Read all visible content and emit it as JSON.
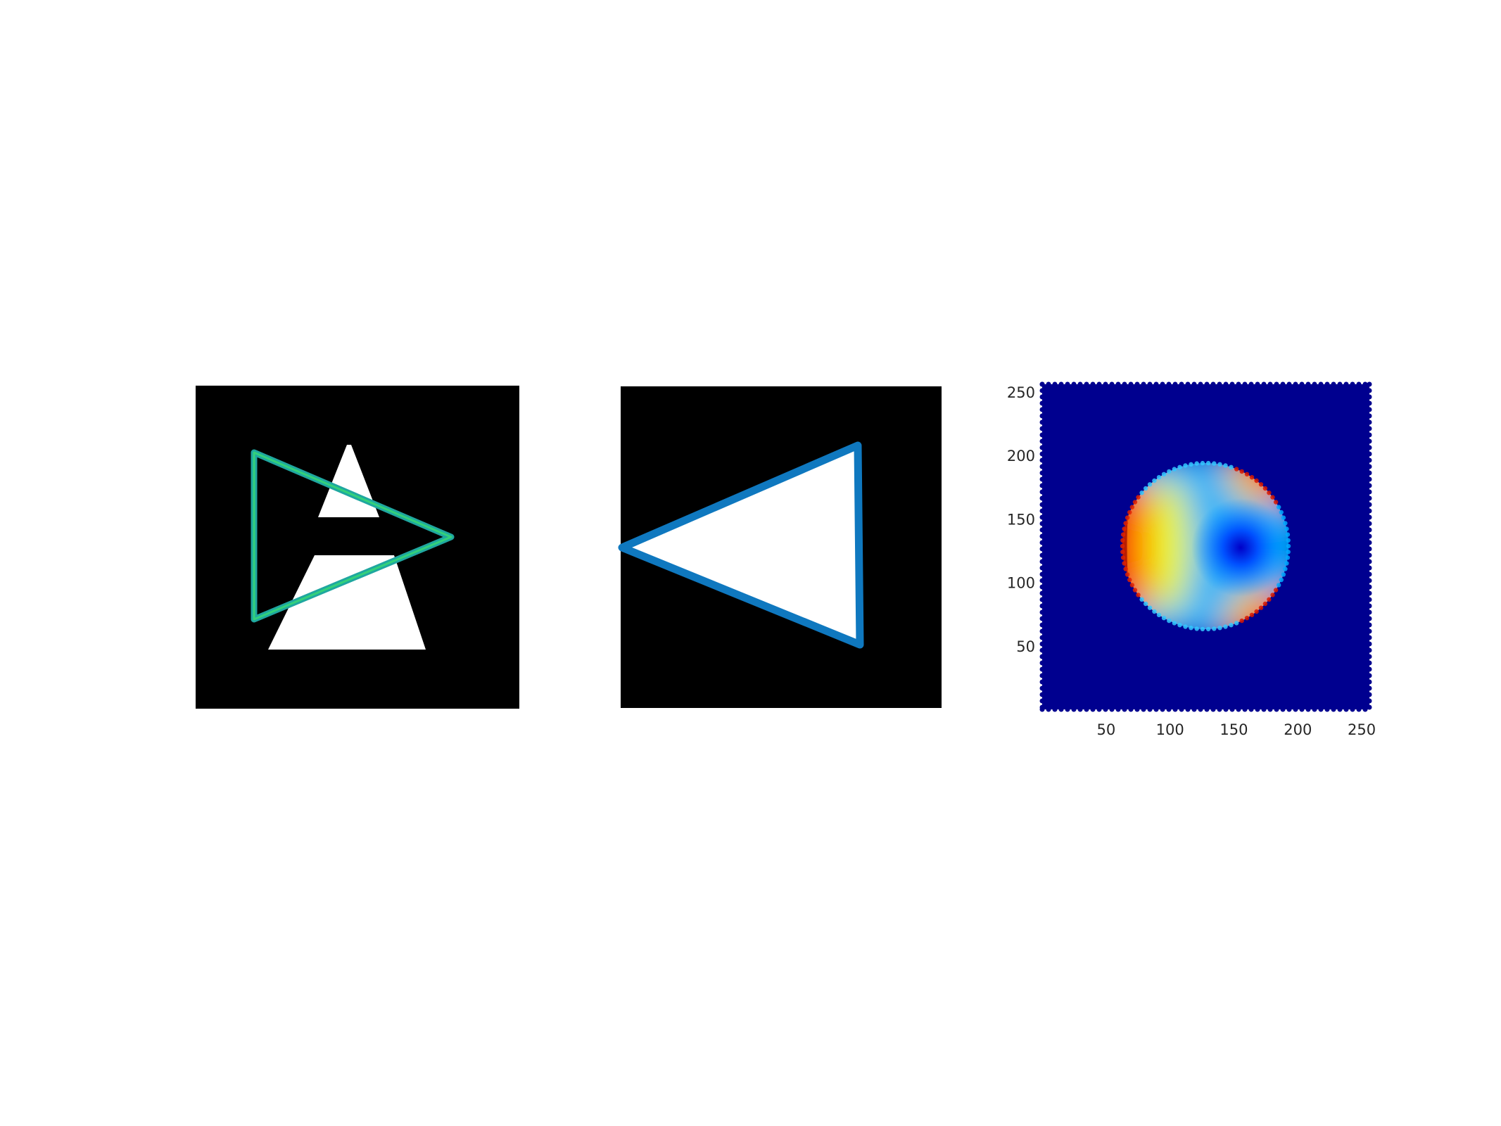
{
  "chart_data": [
    {
      "type": "image",
      "panel": "left",
      "background_color": "#000000",
      "shape_fill_color": "#ffffff",
      "shapes": [
        {
          "kind": "triangle-upper-part",
          "role": "binary-mask"
        },
        {
          "kind": "trapezoid-lower-part",
          "role": "binary-mask"
        }
      ],
      "overlay_contour": {
        "shape": "triangle-pointing-right",
        "color": "#1fa7a0",
        "inner_color": "#33d17a"
      },
      "axes_visible": false
    },
    {
      "type": "image",
      "panel": "middle",
      "background_color": "#000000",
      "shape_fill_color": "#ffffff",
      "shape": "triangle-pointing-left",
      "contour_color": "#0f78bf",
      "axes_visible": false
    },
    {
      "type": "scatter",
      "panel": "right",
      "colormap": "jet",
      "background_color": "#00008f",
      "xlim": [
        0,
        256
      ],
      "ylim": [
        0,
        256
      ],
      "xticks": [
        50,
        100,
        150,
        200,
        250
      ],
      "yticks": [
        50,
        100,
        150,
        200,
        250
      ],
      "xtick_labels": [
        "50",
        "100",
        "150",
        "200",
        "250"
      ],
      "ytick_labels": [
        "50",
        "100",
        "150",
        "200",
        "250"
      ],
      "disk": {
        "center": [
          128,
          128
        ],
        "radius": 64
      },
      "local_minimum": [
        155,
        127
      ],
      "high_value_regions": [
        "left edge",
        "upper-right edge",
        "lower-right edge"
      ],
      "grid": false,
      "legend": "none"
    }
  ]
}
